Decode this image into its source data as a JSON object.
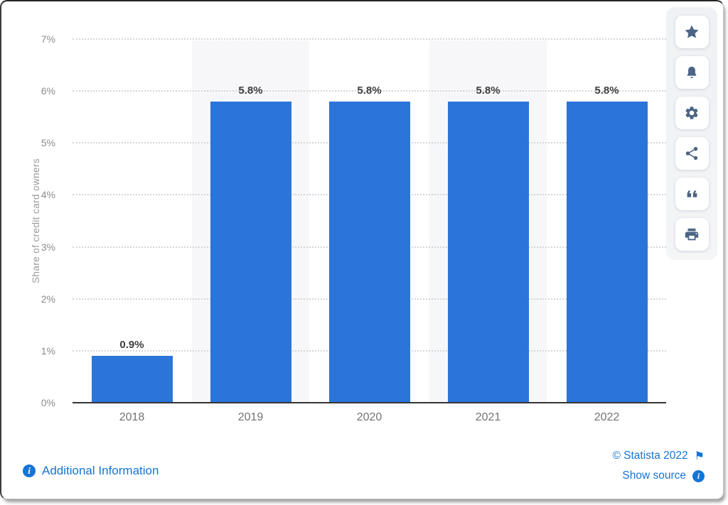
{
  "chart_data": {
    "type": "bar",
    "title": "",
    "categories": [
      "2018",
      "2019",
      "2020",
      "2021",
      "2022"
    ],
    "values": [
      0.9,
      5.8,
      5.8,
      5.8,
      5.8
    ],
    "value_labels": [
      "0.9%",
      "5.8%",
      "5.8%",
      "5.8%",
      "5.8%"
    ],
    "xlabel": "",
    "ylabel": "Share of credit card owners",
    "ylim": [
      0,
      7
    ],
    "yticks": [
      "0%",
      "1%",
      "2%",
      "3%",
      "4%",
      "5%",
      "6%",
      "7%"
    ],
    "grid": "horizontal-dotted",
    "legend": "none",
    "bar_color": "#2b74da",
    "striped_column_indexes": [
      1,
      3
    ],
    "stripe_color": "#f7f7f9"
  },
  "toolbar": {
    "buttons": [
      {
        "name": "favorite-button",
        "icon": "star-icon"
      },
      {
        "name": "notification-button",
        "icon": "bell-icon"
      },
      {
        "name": "settings-button",
        "icon": "gear-icon"
      },
      {
        "name": "share-button",
        "icon": "share-icon"
      },
      {
        "name": "citation-button",
        "icon": "quote-icon"
      },
      {
        "name": "print-button",
        "icon": "printer-icon"
      }
    ]
  },
  "footer": {
    "additional_information_label": "Additional Information",
    "copyright_label": "© Statista 2022",
    "show_source_label": "Show source",
    "info_icon_glyph": "i",
    "flag_icon_glyph": "⚑"
  },
  "colors": {
    "bar_blue": "#2b74da",
    "link_blue": "#1575d3",
    "toolbar_icon_slate": "#4a6585",
    "axis_text_gray": "#8c8c8c",
    "value_label_gray": "#3f3f3f"
  }
}
